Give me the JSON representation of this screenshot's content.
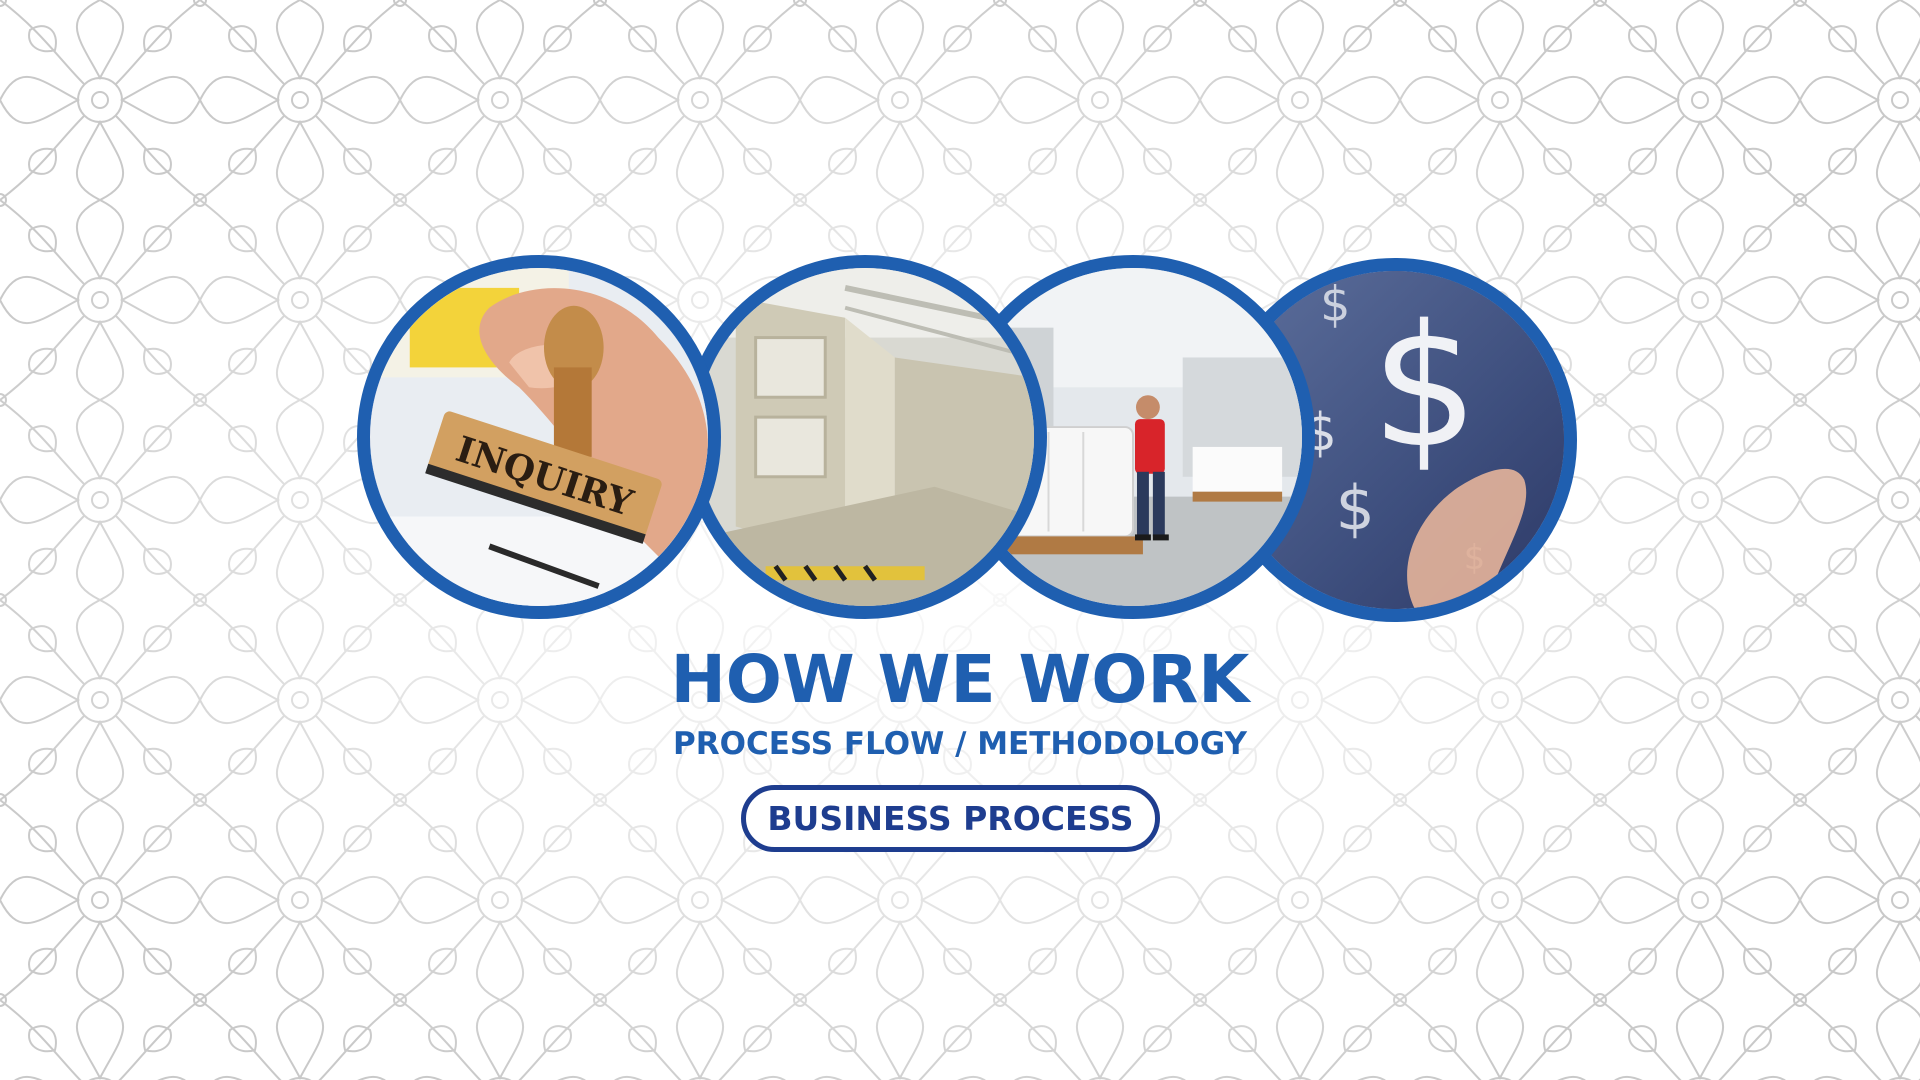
{
  "headline": "HOW WE WORK",
  "subheadline": "PROCESS FLOW / METHODOLOGY",
  "badge_label": "BUSINESS PROCESS",
  "stamp_text": "INQUIRY",
  "dollar_glyph": "$",
  "colors": {
    "brand_blue": "#1f5fb0",
    "navy": "#1e3d8f",
    "pattern_line": "#c9c9c9"
  },
  "images": [
    {
      "name": "inquiry-stamp-photo"
    },
    {
      "name": "factory-equipment-photo"
    },
    {
      "name": "warehouse-worker-photo"
    },
    {
      "name": "finance-dollar-photo"
    }
  ]
}
